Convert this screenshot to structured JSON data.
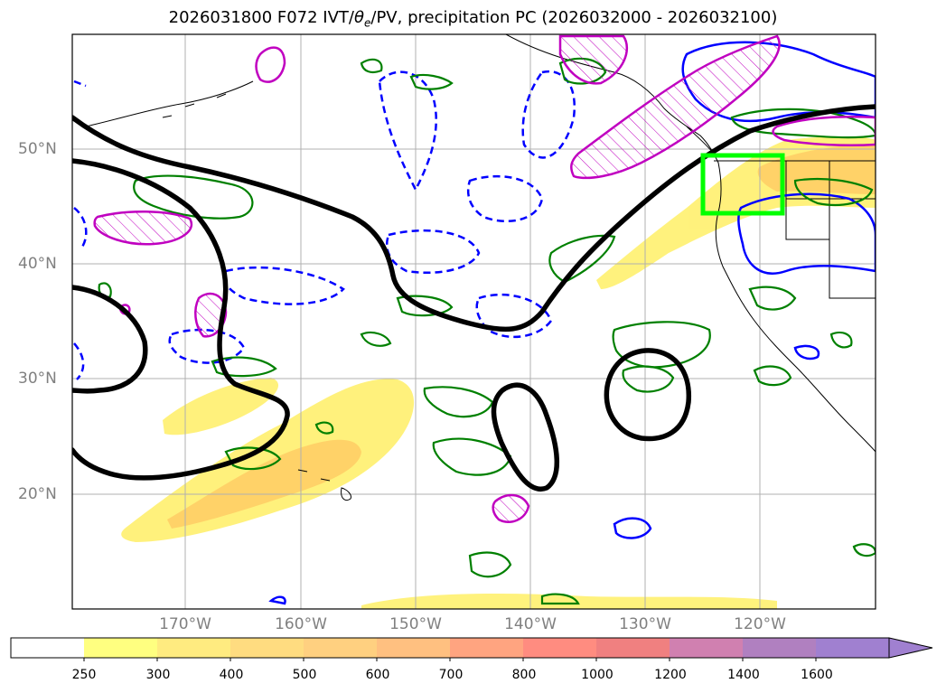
{
  "title": {
    "prefix": "2026031800 F072 IVT/",
    "symbol": "θ",
    "subscript": "e",
    "suffix": "/PV, precipitation PC (2026032000 - 2026032100)"
  },
  "map": {
    "extent": {
      "lon_min": -180,
      "lon_max": -110,
      "lat_min": 10,
      "lat_max": 60
    },
    "lat_ticks": [
      {
        "lat": 50,
        "label": "50°N"
      },
      {
        "lat": 40,
        "label": "40°N"
      },
      {
        "lat": 30,
        "label": "30°N"
      },
      {
        "lat": 20,
        "label": "20°N"
      }
    ],
    "lon_ticks": [
      {
        "lon": -170,
        "label": "170°W"
      },
      {
        "lon": -160,
        "label": "160°W"
      },
      {
        "lon": -150,
        "label": "150°W"
      },
      {
        "lon": -140,
        "label": "140°W"
      },
      {
        "lon": -130,
        "label": "130°W"
      },
      {
        "lon": -120,
        "label": "120°W"
      }
    ],
    "gridlines": true,
    "highlight_box": {
      "lon_min": -125,
      "lon_max": -118,
      "lat_min": 45,
      "lat_max": 50,
      "color": "#00ff00"
    }
  },
  "colorbar": {
    "levels": [
      "250",
      "300",
      "400",
      "500",
      "600",
      "700",
      "800",
      "1000",
      "1200",
      "1400",
      "1600"
    ],
    "colors": [
      "#ffffff",
      "#ffff80",
      "#ffeb80",
      "#ffdc80",
      "#ffd080",
      "#ffc080",
      "#ffa480",
      "#ff8c80",
      "#f08080",
      "#d080b0",
      "#b080c0",
      "#a080d0"
    ],
    "extend": "max"
  },
  "colors": {
    "ivt_contour": "#000000",
    "theta_e_solid": "#0000ff",
    "green_contour": "#008000",
    "pv_magenta": "#c000c0",
    "ivt_fill_light": "#fff176",
    "ivt_fill_mid": "#ffd060"
  }
}
